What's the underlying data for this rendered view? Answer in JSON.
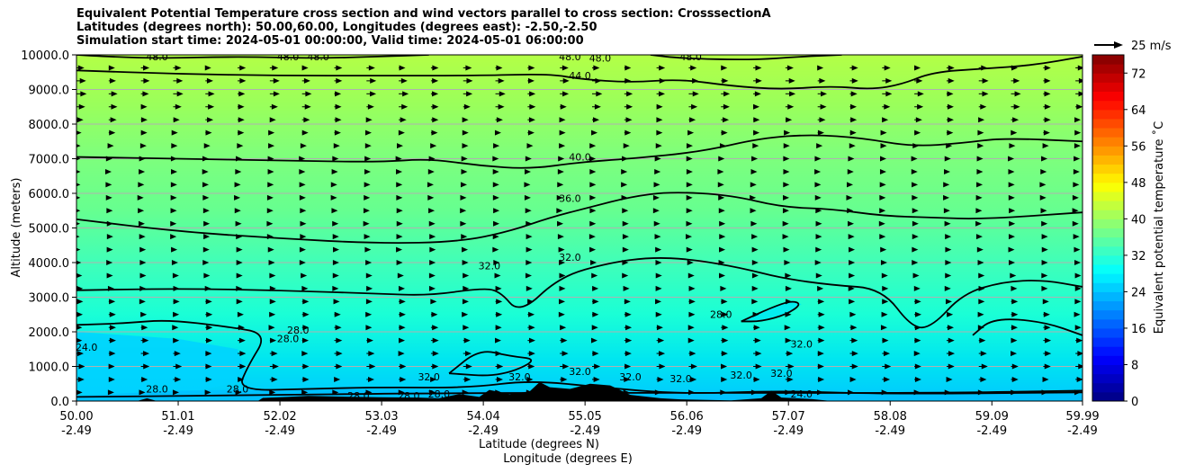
{
  "chart_data": {
    "type": "contour",
    "title_lines": [
      "Equivalent Potential Temperature cross section and wind vectors parallel to cross section: CrosssectionA",
      "Latitudes (degrees north): 50.00,60.00, Longitudes (degrees east): -2.50,-2.50",
      "Simulation start time: 2024-05-01 00:00:00, Valid time: 2024-05-01 06:00:00"
    ],
    "ylabel": "Altitude (meters)",
    "xlabel_lat": "Latitude (degrees N)",
    "xlabel_lon": "Longitude (degrees E)",
    "ylim": [
      0,
      10000
    ],
    "xlim": [
      50.0,
      59.99
    ],
    "grid": "horizontal",
    "y_ticks": [
      "0.0",
      "1000.0",
      "2000.0",
      "3000.0",
      "4000.0",
      "5000.0",
      "6000.0",
      "7000.0",
      "8000.0",
      "9000.0",
      "10000.0"
    ],
    "x_ticks": [
      {
        "lat": "50.00",
        "lon": "-2.49"
      },
      {
        "lat": "51.01",
        "lon": "-2.49"
      },
      {
        "lat": "52.02",
        "lon": "-2.49"
      },
      {
        "lat": "53.03",
        "lon": "-2.49"
      },
      {
        "lat": "54.04",
        "lon": "-2.49"
      },
      {
        "lat": "55.05",
        "lon": "-2.49"
      },
      {
        "lat": "56.06",
        "lon": "-2.49"
      },
      {
        "lat": "57.07",
        "lon": "-2.49"
      },
      {
        "lat": "58.08",
        "lon": "-2.49"
      },
      {
        "lat": "59.09",
        "lon": "-2.49"
      },
      {
        "lat": "59.99",
        "lon": "-2.49"
      }
    ],
    "colorbar": {
      "label": "Equivalent potential temperature ˚C",
      "range": [
        0,
        76
      ],
      "ticks": [
        "0",
        "8",
        "16",
        "24",
        "32",
        "40",
        "48",
        "56",
        "64",
        "72"
      ]
    },
    "quiver_key": "25 m/s",
    "contours": [
      {
        "level": 24.0,
        "label": "24.0",
        "points": [
          [
            50.0,
            120
          ],
          [
            51.5,
            160
          ],
          [
            53.5,
            230
          ],
          [
            56.0,
            240
          ],
          [
            58.5,
            230
          ],
          [
            59.99,
            300
          ]
        ]
      },
      {
        "level": 28.0,
        "label": "28.0",
        "points": [
          [
            50.0,
            2200
          ],
          [
            50.5,
            2250
          ],
          [
            50.9,
            2350
          ],
          [
            51.5,
            2150
          ],
          [
            51.9,
            1950
          ],
          [
            51.7,
            1000
          ],
          [
            51.6,
            300
          ],
          [
            52.3,
            350
          ],
          [
            53.0,
            400
          ],
          [
            53.9,
            380
          ],
          [
            54.5,
            600
          ],
          [
            55.2,
            400
          ],
          [
            56.0,
            200
          ],
          [
            57.0,
            300
          ],
          [
            58.0,
            200
          ],
          [
            59.99,
            250
          ]
        ]
      },
      {
        "level": 28.0,
        "label": "28.0",
        "points": [
          [
            56.6,
            2300
          ],
          [
            56.9,
            2700
          ],
          [
            57.1,
            2900
          ],
          [
            57.2,
            2800
          ],
          [
            57.05,
            2500
          ],
          [
            56.8,
            2300
          ],
          [
            56.6,
            2300
          ]
        ]
      },
      {
        "level": 32.0,
        "label": "32.0",
        "points": [
          [
            50.0,
            3200
          ],
          [
            51.0,
            3250
          ],
          [
            52.0,
            3200
          ],
          [
            53.0,
            3100
          ],
          [
            53.5,
            3050
          ],
          [
            54.0,
            3250
          ],
          [
            54.2,
            3200
          ],
          [
            54.4,
            2500
          ],
          [
            54.8,
            3600
          ],
          [
            55.3,
            4000
          ],
          [
            55.7,
            4150
          ],
          [
            56.1,
            4100
          ],
          [
            56.6,
            3850
          ],
          [
            57.0,
            3550
          ],
          [
            57.5,
            3350
          ],
          [
            58.0,
            3250
          ],
          [
            58.3,
            2100
          ],
          [
            58.5,
            2150
          ],
          [
            58.8,
            3100
          ],
          [
            59.2,
            3450
          ],
          [
            59.6,
            3500
          ],
          [
            59.99,
            3300
          ]
        ]
      },
      {
        "level": 32.0,
        "label": "32.0",
        "points": [
          [
            58.9,
            1900
          ],
          [
            59.1,
            2400
          ],
          [
            59.6,
            2300
          ],
          [
            59.99,
            1900
          ]
        ]
      },
      {
        "level": 32.0,
        "label": "32.0",
        "points": [
          [
            53.7,
            800
          ],
          [
            54.0,
            1500
          ],
          [
            54.3,
            1300
          ],
          [
            54.6,
            1200
          ],
          [
            54.2,
            700
          ],
          [
            53.7,
            800
          ]
        ]
      },
      {
        "level": 36.0,
        "label": "36.0",
        "points": [
          [
            50.0,
            5250
          ],
          [
            51.0,
            4900
          ],
          [
            52.0,
            4700
          ],
          [
            53.0,
            4550
          ],
          [
            53.8,
            4600
          ],
          [
            54.3,
            4900
          ],
          [
            54.7,
            5300
          ],
          [
            55.1,
            5600
          ],
          [
            55.5,
            5900
          ],
          [
            55.9,
            6050
          ],
          [
            56.5,
            5950
          ],
          [
            57.0,
            5600
          ],
          [
            57.5,
            5550
          ],
          [
            58.0,
            5350
          ],
          [
            58.5,
            5300
          ],
          [
            59.0,
            5250
          ],
          [
            59.99,
            5450
          ]
        ]
      },
      {
        "level": 40.0,
        "label": "40.0",
        "points": [
          [
            50.0,
            7050
          ],
          [
            51.0,
            7000
          ],
          [
            52.0,
            6950
          ],
          [
            53.0,
            6900
          ],
          [
            53.5,
            7000
          ],
          [
            54.0,
            6800
          ],
          [
            54.5,
            6700
          ],
          [
            55.0,
            6900
          ],
          [
            55.5,
            7000
          ],
          [
            56.2,
            7200
          ],
          [
            56.8,
            7600
          ],
          [
            57.3,
            7700
          ],
          [
            57.8,
            7600
          ],
          [
            58.3,
            7350
          ],
          [
            58.8,
            7450
          ],
          [
            59.2,
            7600
          ],
          [
            59.99,
            7500
          ]
        ]
      },
      {
        "level": 44.0,
        "label": "44.0",
        "points": [
          [
            50.0,
            9550
          ],
          [
            51.0,
            9450
          ],
          [
            52.0,
            9400
          ],
          [
            53.0,
            9400
          ],
          [
            54.0,
            9400
          ],
          [
            54.7,
            9450
          ],
          [
            55.0,
            9300
          ],
          [
            55.5,
            9200
          ],
          [
            56.0,
            9300
          ],
          [
            56.5,
            9100
          ],
          [
            57.0,
            9000
          ],
          [
            57.5,
            9100
          ],
          [
            57.9,
            9000
          ],
          [
            58.2,
            9150
          ],
          [
            58.5,
            9500
          ],
          [
            59.0,
            9600
          ],
          [
            59.5,
            9700
          ],
          [
            59.99,
            9950
          ]
        ]
      },
      {
        "level": 48.0,
        "label": "48.0",
        "points": [
          [
            50.0,
            10000
          ],
          [
            50.3,
            9950
          ],
          [
            50.8,
            9900
          ],
          [
            51.6,
            9950
          ],
          [
            52.4,
            9900
          ],
          [
            53.0,
            9950
          ],
          [
            53.5,
            10000
          ]
        ]
      },
      {
        "level": 48.0,
        "label": "48.0",
        "points": [
          [
            55.7,
            10000
          ],
          [
            56.0,
            9900
          ],
          [
            56.7,
            9850
          ],
          [
            57.2,
            9950
          ],
          [
            57.6,
            10000
          ]
        ]
      }
    ],
    "contour_labels": [
      {
        "text": "48.0",
        "x": 50.8,
        "y": 9850
      },
      {
        "text": "48.0",
        "x": 52.1,
        "y": 9850
      },
      {
        "text": "48.0",
        "x": 52.4,
        "y": 9850
      },
      {
        "text": "48.0",
        "x": 54.9,
        "y": 9850
      },
      {
        "text": "48.0",
        "x": 55.2,
        "y": 9800
      },
      {
        "text": "48.0",
        "x": 56.1,
        "y": 9850
      },
      {
        "text": "44.0",
        "x": 55.0,
        "y": 9300
      },
      {
        "text": "40.0",
        "x": 55.0,
        "y": 6950
      },
      {
        "text": "36.0",
        "x": 54.9,
        "y": 5750
      },
      {
        "text": "32.0",
        "x": 54.9,
        "y": 4050
      },
      {
        "text": "32.0",
        "x": 54.1,
        "y": 3800
      },
      {
        "text": "32.0",
        "x": 57.2,
        "y": 1550
      },
      {
        "text": "28.0",
        "x": 52.2,
        "y": 1950
      },
      {
        "text": "28.0",
        "x": 52.1,
        "y": 1700
      },
      {
        "text": "28.0",
        "x": 56.4,
        "y": 2400
      },
      {
        "text": "24.0",
        "x": 50.1,
        "y": 1450
      },
      {
        "text": "28.0",
        "x": 51.6,
        "y": 250
      },
      {
        "text": "28.0",
        "x": 50.8,
        "y": 250
      },
      {
        "text": "28.0",
        "x": 52.8,
        "y": 50
      },
      {
        "text": "28.0",
        "x": 53.3,
        "y": 50
      },
      {
        "text": "28.0",
        "x": 53.6,
        "y": 100
      },
      {
        "text": "32.0",
        "x": 54.4,
        "y": 600
      },
      {
        "text": "32.0",
        "x": 55.0,
        "y": 750
      },
      {
        "text": "32.0",
        "x": 55.5,
        "y": 600
      },
      {
        "text": "32.0",
        "x": 56.0,
        "y": 550
      },
      {
        "text": "32.0",
        "x": 56.6,
        "y": 650
      },
      {
        "text": "32.0",
        "x": 57.0,
        "y": 700
      },
      {
        "text": "24.0",
        "x": 57.2,
        "y": 100
      },
      {
        "text": "32.0",
        "x": 53.5,
        "y": 600
      }
    ],
    "terrain": [
      [
        50.0,
        0
      ],
      [
        50.6,
        0
      ],
      [
        50.7,
        80
      ],
      [
        50.8,
        0
      ],
      [
        51.8,
        0
      ],
      [
        51.85,
        90
      ],
      [
        52.1,
        120
      ],
      [
        52.3,
        150
      ],
      [
        52.6,
        130
      ],
      [
        53.0,
        110
      ],
      [
        53.4,
        100
      ],
      [
        53.6,
        80
      ],
      [
        53.8,
        200
      ],
      [
        54.0,
        120
      ],
      [
        54.1,
        320
      ],
      [
        54.3,
        200
      ],
      [
        54.5,
        280
      ],
      [
        54.6,
        550
      ],
      [
        54.7,
        400
      ],
      [
        54.9,
        350
      ],
      [
        55.1,
        500
      ],
      [
        55.3,
        450
      ],
      [
        55.5,
        180
      ],
      [
        55.8,
        80
      ],
      [
        56.0,
        50
      ],
      [
        56.5,
        20
      ],
      [
        56.8,
        80
      ],
      [
        56.9,
        300
      ],
      [
        57.0,
        100
      ],
      [
        57.3,
        60
      ],
      [
        57.5,
        0
      ],
      [
        59.99,
        0
      ]
    ],
    "wind_u_by_height": [
      {
        "alt": 250,
        "u": 0.4
      },
      {
        "alt": 500,
        "u": 0.5
      },
      {
        "alt": 1000,
        "u": 0.6
      },
      {
        "alt": 2000,
        "u": 0.5
      },
      {
        "alt": 3000,
        "u": 0.45
      },
      {
        "alt": 4000,
        "u": 0.35
      },
      {
        "alt": 5000,
        "u": 0.3
      },
      {
        "alt": 6000,
        "u": 0.25
      },
      {
        "alt": 7000,
        "u": 0.3
      },
      {
        "alt": 8000,
        "u": 0.5
      },
      {
        "alt": 9000,
        "u": 0.7
      },
      {
        "alt": 10000,
        "u": 0.5
      }
    ]
  }
}
